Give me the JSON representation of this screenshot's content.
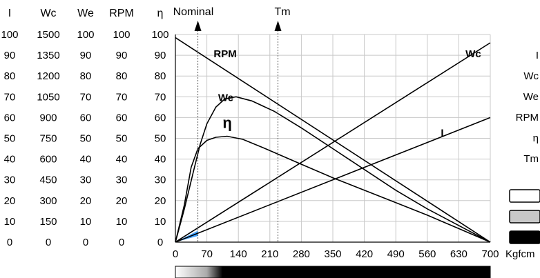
{
  "chart_data": {
    "type": "line",
    "x_unit": "Kgfcm",
    "xlim": [
      0,
      700
    ],
    "x_ticks": [
      "0",
      "70",
      "140",
      "210",
      "280",
      "350",
      "420",
      "490",
      "560",
      "630",
      "700"
    ],
    "scales": [
      {
        "name": "I",
        "ticks": [
          "100",
          "90",
          "80",
          "70",
          "60",
          "50",
          "40",
          "30",
          "20",
          "10",
          "0"
        ]
      },
      {
        "name": "Wc",
        "ticks": [
          "1500",
          "1350",
          "1200",
          "1050",
          "900",
          "750",
          "600",
          "450",
          "300",
          "150",
          "0"
        ]
      },
      {
        "name": "We",
        "ticks": [
          "100",
          "90",
          "80",
          "70",
          "60",
          "50",
          "40",
          "30",
          "20",
          "10",
          "0"
        ]
      },
      {
        "name": "RPM",
        "ticks": [
          "100",
          "90",
          "80",
          "70",
          "60",
          "50",
          "40",
          "30",
          "20",
          "10",
          "0"
        ]
      },
      {
        "name": "η",
        "ticks": [
          "100",
          "90",
          "80",
          "70",
          "60",
          "50",
          "40",
          "30",
          "20",
          "10",
          "0"
        ]
      }
    ],
    "ylim": [
      0,
      100
    ],
    "markers": [
      {
        "label": "Nominal",
        "x": 50
      },
      {
        "label": "Tm",
        "x": 228
      }
    ],
    "series": [
      {
        "name": "RPM",
        "points": [
          [
            0,
            98.5
          ],
          [
            700,
            0
          ]
        ]
      },
      {
        "name": "Wc",
        "points": [
          [
            0,
            0
          ],
          [
            700,
            96
          ]
        ]
      },
      {
        "name": "I",
        "points": [
          [
            0,
            0
          ],
          [
            700,
            60
          ]
        ]
      },
      {
        "name": "We",
        "points": [
          [
            0,
            0
          ],
          [
            20,
            16
          ],
          [
            40,
            34
          ],
          [
            55,
            47
          ],
          [
            70,
            57
          ],
          [
            90,
            65
          ],
          [
            110,
            69
          ],
          [
            135,
            70
          ],
          [
            170,
            68
          ],
          [
            220,
            63
          ],
          [
            280,
            55
          ],
          [
            350,
            45
          ],
          [
            420,
            35
          ],
          [
            490,
            25
          ],
          [
            560,
            16
          ],
          [
            630,
            8
          ],
          [
            700,
            0
          ]
        ]
      },
      {
        "name": "η",
        "points": [
          [
            0,
            0
          ],
          [
            20,
            18
          ],
          [
            35,
            36
          ],
          [
            50,
            45
          ],
          [
            70,
            49
          ],
          [
            90,
            50.5
          ],
          [
            115,
            51
          ],
          [
            150,
            49.5
          ],
          [
            200,
            45
          ],
          [
            280,
            37.5
          ],
          [
            350,
            31
          ],
          [
            420,
            25
          ],
          [
            490,
            19
          ],
          [
            560,
            13
          ],
          [
            630,
            6.5
          ],
          [
            700,
            0
          ]
        ]
      }
    ],
    "highlight": {
      "x_from": 0,
      "x_to": 50
    },
    "legend": [
      "I",
      "Wc",
      "We",
      "RPM",
      "η",
      "Tm"
    ],
    "legend_swatches": [
      "white",
      "gray",
      "black"
    ],
    "gradient_bar": {
      "start": "#ffffff",
      "gray_at": 0.1,
      "black_from": 0.15
    }
  }
}
